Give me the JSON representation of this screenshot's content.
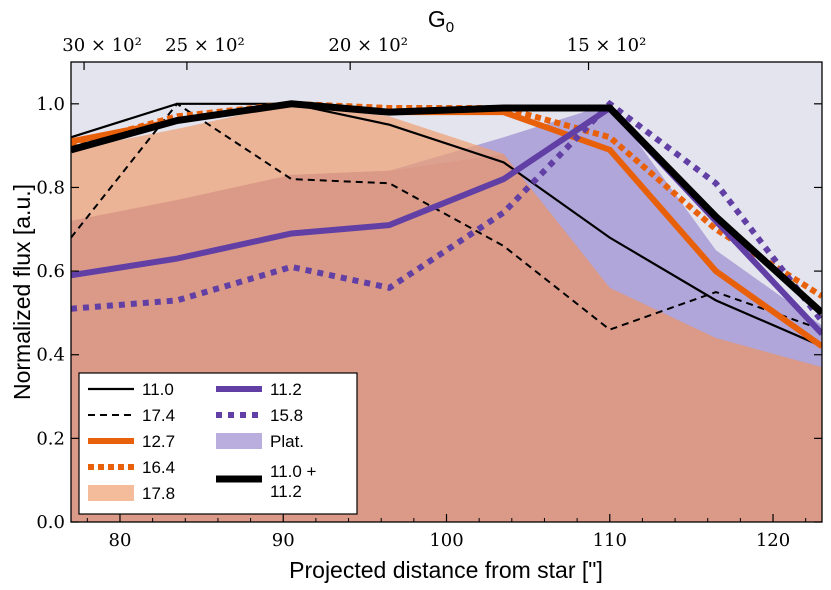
{
  "chart_data": {
    "type": "line",
    "xlabel": "Projected distance from star [\"]",
    "ylabel": "Normalized flux [a.u.]",
    "top_axis_label_main": "G",
    "top_axis_label_sub": "0",
    "xlim": [
      77,
      123
    ],
    "ylim": [
      0.0,
      1.1
    ],
    "x_ticks": [
      80,
      90,
      100,
      110,
      120
    ],
    "y_ticks": [
      0.0,
      0.2,
      0.4,
      0.6,
      0.8,
      1.0
    ],
    "y_tick_labels": [
      "0.0",
      "0.2",
      "0.4",
      "0.6",
      "0.8",
      "1.0"
    ],
    "top_ticks": [
      {
        "label": "30 × 10²",
        "at": 77.8
      },
      {
        "label": "25 × 10²",
        "at": 84.1
      },
      {
        "label": "20 × 10²",
        "at": 94.1
      },
      {
        "label": "15 × 10²",
        "at": 108.7
      }
    ],
    "legend_position": "bottom-left",
    "colors": {
      "black": "#000000",
      "orange": "#e8600a",
      "purple": "#613fa4",
      "orange_fill": "#f0a070",
      "purple_fill": "#9b8bd0",
      "background_fill": "#e4e4ee",
      "red_fill": "#c8928f"
    },
    "series": [
      {
        "name": "Plat.",
        "kind": "fill",
        "color": "#9b8bd0",
        "opacity": 0.7,
        "x": [
          77,
          83.5,
          90.5,
          96.5,
          103.5,
          110,
          116.5,
          123
        ],
        "y": [
          0.72,
          0.77,
          0.83,
          0.84,
          0.92,
          1.0,
          0.65,
          0.47
        ]
      },
      {
        "name": "17.8",
        "kind": "fill",
        "color": "#f0a070",
        "opacity": 0.7,
        "x": [
          77,
          83.5,
          90.5,
          96.5,
          103.5,
          110,
          116.5,
          123
        ],
        "y": [
          0.89,
          0.94,
          1.0,
          0.97,
          0.88,
          0.56,
          0.44,
          0.37
        ]
      },
      {
        "name": "11.0",
        "kind": "line",
        "color": "#000000",
        "width": 2.2,
        "dash": "",
        "x": [
          77,
          83.5,
          90.5,
          96.5,
          103.5,
          110,
          116.5,
          123
        ],
        "y": [
          0.92,
          1.0,
          1.0,
          0.95,
          0.86,
          0.68,
          0.53,
          0.42
        ]
      },
      {
        "name": "17.4",
        "kind": "line",
        "color": "#000000",
        "width": 2.0,
        "dash": "7,5",
        "x": [
          77,
          83.5,
          90.5,
          96.5,
          103.5,
          110,
          116.5,
          123
        ],
        "y": [
          0.68,
          1.0,
          0.82,
          0.81,
          0.66,
          0.46,
          0.55,
          0.46
        ]
      },
      {
        "name": "12.7",
        "kind": "line",
        "color": "#e8600a",
        "width": 6,
        "dash": "",
        "x": [
          77,
          83.5,
          90.5,
          96.5,
          103.5,
          110,
          116.5,
          123
        ],
        "y": [
          0.91,
          0.96,
          1.0,
          0.98,
          0.98,
          0.89,
          0.6,
          0.42
        ]
      },
      {
        "name": "16.4",
        "kind": "line",
        "color": "#e8600a",
        "width": 6,
        "dash": "6,4",
        "x": [
          77,
          83.5,
          90.5,
          96.5,
          103.5,
          110,
          116.5,
          123
        ],
        "y": [
          0.9,
          0.97,
          1.0,
          0.99,
          0.99,
          0.92,
          0.7,
          0.54
        ]
      },
      {
        "name": "11.2",
        "kind": "line",
        "color": "#613fa4",
        "width": 6,
        "dash": "",
        "x": [
          77,
          83.5,
          90.5,
          96.5,
          103.5,
          110,
          116.5,
          123
        ],
        "y": [
          0.59,
          0.63,
          0.69,
          0.71,
          0.82,
          0.99,
          0.72,
          0.45
        ]
      },
      {
        "name": "15.8",
        "kind": "line",
        "color": "#613fa4",
        "width": 6,
        "dash": "6,6",
        "x": [
          77,
          83.5,
          90.5,
          96.5,
          103.5,
          110,
          116.5,
          123
        ],
        "y": [
          0.51,
          0.53,
          0.61,
          0.56,
          0.74,
          1.0,
          0.81,
          0.48
        ]
      },
      {
        "name": "11.0 +\n11.2",
        "kind": "line",
        "color": "#000000",
        "width": 7,
        "dash": "",
        "x": [
          77,
          83.5,
          90.5,
          96.5,
          103.5,
          110,
          116.5,
          123
        ],
        "y": [
          0.89,
          0.96,
          1.0,
          0.98,
          0.99,
          0.99,
          0.73,
          0.5
        ]
      }
    ],
    "legend": {
      "col1": [
        {
          "label": "11.0",
          "ref": "11.0"
        },
        {
          "label": "17.4",
          "ref": "17.4"
        },
        {
          "label": "12.7",
          "ref": "12.7"
        },
        {
          "label": "16.4",
          "ref": "16.4"
        },
        {
          "label": "17.8",
          "ref": "17.8"
        }
      ],
      "col2": [
        {
          "label": "11.2",
          "ref": "11.2"
        },
        {
          "label": "15.8",
          "ref": "15.8"
        },
        {
          "label": "Plat.",
          "ref": "Plat."
        },
        {
          "label": "11.0 +",
          "label2": "11.2",
          "ref": "11.0 +\n11.2"
        }
      ]
    }
  }
}
